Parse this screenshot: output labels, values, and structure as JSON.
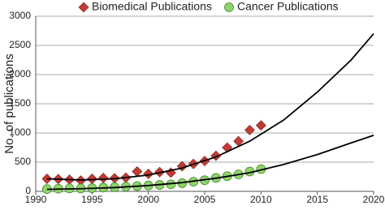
{
  "chart_data": {
    "type": "scatter",
    "ylabel": "No. of publications",
    "xlim": [
      1990,
      2020
    ],
    "xticks": [
      1990,
      1995,
      2000,
      2005,
      2010,
      2015,
      2020
    ],
    "ylim": [
      0,
      3000
    ],
    "yticks": [
      0,
      500,
      1000,
      1500,
      2000,
      2500,
      3000
    ],
    "grid": true,
    "legend": "top",
    "series": [
      {
        "name": "Biomedical Publications",
        "color": "#c23b35",
        "marker": "diamond",
        "x": [
          1991,
          1992,
          1993,
          1994,
          1995,
          1996,
          1997,
          1998,
          1999,
          2000,
          2001,
          2002,
          2003,
          2004,
          2005,
          2006,
          2007,
          2008,
          2009,
          2010
        ],
        "values": [
          215,
          210,
          200,
          185,
          215,
          230,
          225,
          235,
          340,
          300,
          330,
          320,
          430,
          470,
          520,
          610,
          750,
          860,
          1050,
          1130
        ],
        "trend": {
          "color": "#000000",
          "x": [
            1991,
            1994,
            1997,
            2000,
            2003,
            2006,
            2009,
            2012,
            2015,
            2018,
            2020
          ],
          "values": [
            215,
            195,
            215,
            280,
            400,
            590,
            860,
            1220,
            1700,
            2250,
            2700
          ]
        }
      },
      {
        "name": "Cancer Publications",
        "color": "#8fd46a",
        "marker": "circle",
        "x": [
          1991,
          1992,
          1993,
          1994,
          1995,
          1996,
          1997,
          1998,
          1999,
          2000,
          2001,
          2002,
          2003,
          2004,
          2005,
          2006,
          2007,
          2008,
          2009,
          2010
        ],
        "values": [
          40,
          45,
          50,
          50,
          55,
          65,
          70,
          80,
          90,
          100,
          110,
          120,
          140,
          165,
          190,
          230,
          260,
          290,
          340,
          380
        ],
        "trend": {
          "color": "#000000",
          "x": [
            1991,
            1994,
            1997,
            2000,
            2003,
            2006,
            2009,
            2012,
            2015,
            2018,
            2020
          ],
          "values": [
            35,
            45,
            65,
            100,
            150,
            225,
            320,
            460,
            630,
            830,
            960
          ]
        }
      }
    ]
  }
}
